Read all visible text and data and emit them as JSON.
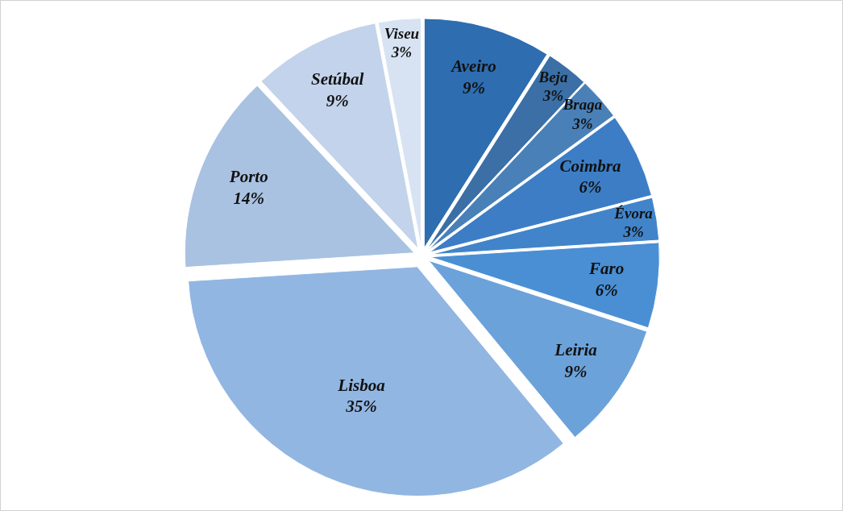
{
  "chart_data": {
    "type": "pie",
    "categories": [
      "Aveiro",
      "Beja",
      "Braga",
      "Coimbra",
      "Évora",
      "Faro",
      "Leiria",
      "Lisboa",
      "Porto",
      "Setúbal",
      "Viseu"
    ],
    "values": [
      9,
      3,
      3,
      6,
      3,
      6,
      9,
      35,
      14,
      9,
      3
    ],
    "value_labels": [
      "9%",
      "3%",
      "3%",
      "6%",
      "3%",
      "6%",
      "9%",
      "35%",
      "14%",
      "9%",
      "3%"
    ],
    "colors": [
      "#2e6db0",
      "#3b6fa6",
      "#4a80b8",
      "#3d7dc5",
      "#4184ca",
      "#4a8fd4",
      "#6ca2da",
      "#92b6e2",
      "#a9c2e2",
      "#c2d3eb",
      "#d7e3f3"
    ]
  }
}
